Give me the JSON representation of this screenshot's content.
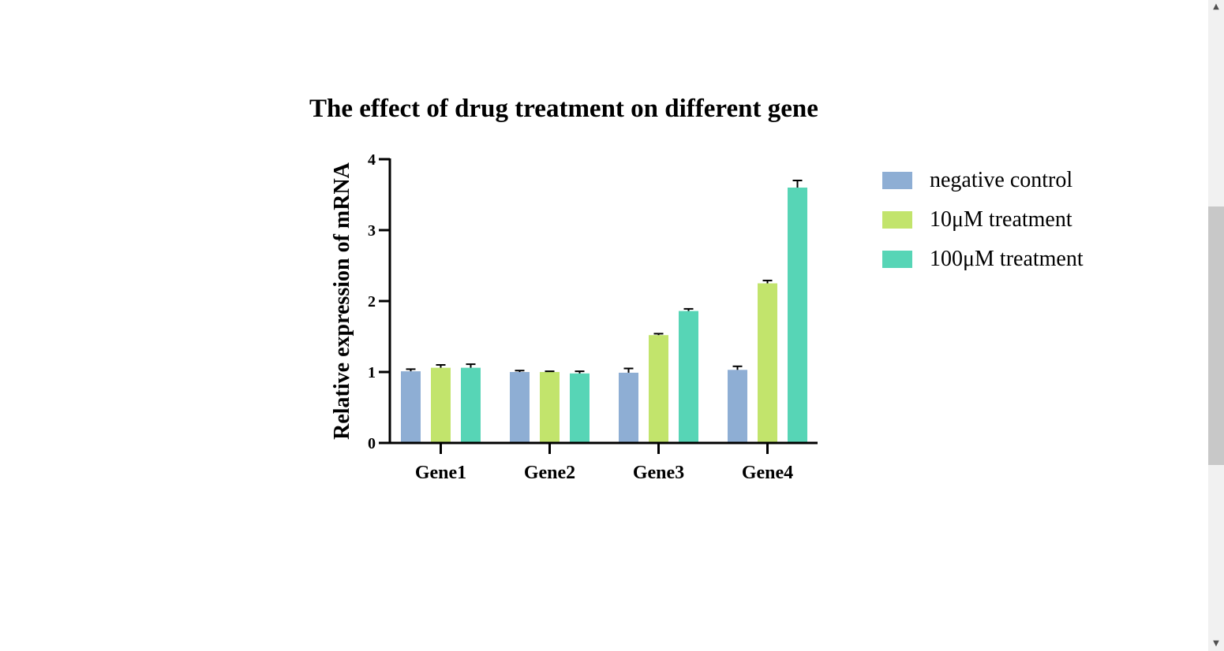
{
  "chart_data": {
    "type": "bar",
    "title": "The effect of drug treatment on different gene",
    "ylabel": "Relative expression of mRNA",
    "xlabel": "",
    "ylim": [
      0,
      4
    ],
    "yticks": [
      "0",
      "1",
      "2",
      "3",
      "4"
    ],
    "categories": [
      "Gene1",
      "Gene2",
      "Gene3",
      "Gene4"
    ],
    "series": [
      {
        "name": "negative control",
        "color": "#8eaed4",
        "values": [
          1.01,
          1.0,
          0.99,
          1.03
        ],
        "errors": [
          0.03,
          0.02,
          0.06,
          0.05
        ]
      },
      {
        "name": "10μM treatment",
        "color": "#c2e46c",
        "values": [
          1.06,
          1.0,
          1.52,
          2.25
        ],
        "errors": [
          0.04,
          0.01,
          0.02,
          0.04
        ]
      },
      {
        "name": "100μM treatment",
        "color": "#57d5b6",
        "values": [
          1.06,
          0.98,
          1.86,
          3.6
        ],
        "errors": [
          0.05,
          0.03,
          0.03,
          0.1
        ]
      }
    ],
    "grid": false,
    "legend_position": "right"
  },
  "scrollbar": {
    "up_icon": "▲",
    "down_icon": "▼"
  }
}
